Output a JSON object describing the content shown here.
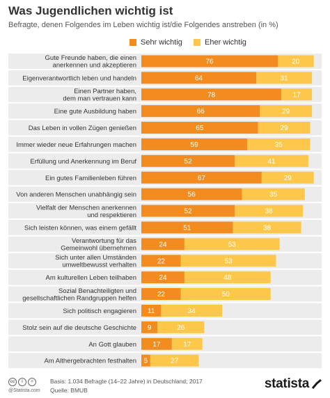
{
  "header": {
    "title": "Was Jugendlichen wichtig ist",
    "subtitle": "Befragte, denen Folgendes im Leben wichtig ist/die Folgendes anstreben (in %)"
  },
  "chart_data": {
    "type": "bar",
    "orientation": "horizontal",
    "stacked": true,
    "legend_position": "top",
    "categories": [
      "Gute Freunde haben, die einen\nanerkennen und akzeptieren",
      "Eigenverantwortlich leben und handeln",
      "Einen Partner haben,\ndem man vertrauen kann",
      "Eine gute Ausbildung haben",
      "Das Leben in vollen Zügen genießen",
      "Immer wieder neue Erfahrungen machen",
      "Erfüllung und Anerkennung im Beruf",
      "Ein gutes Familienleben führen",
      "Von anderen Menschen unabhängig sein",
      "Vielfalt der Menschen anerkennen\nund respektieren",
      "Sich leisten können, was einem gefällt",
      "Verantwortung für das\nGemeinwohl übernehmen",
      "Sich unter allen Umständen\numweltbewusst verhalten",
      "Am kulturellen Leben teilhaben",
      "Sozial Benachteiligten und\ngesellschaftlichen Randgruppen helfen",
      "Sich politisch engagieren",
      "Stolz sein auf die deutsche Geschichte",
      "An Gott glauben",
      "Am Althergebrachten festhalten"
    ],
    "series": [
      {
        "name": "Sehr wichtig",
        "color": "#f28c1f",
        "values": [
          76,
          64,
          78,
          66,
          65,
          59,
          52,
          67,
          56,
          52,
          51,
          24,
          22,
          24,
          22,
          11,
          9,
          17,
          5
        ]
      },
      {
        "name": "Eher wichtig",
        "color": "#fcc74a",
        "values": [
          20,
          31,
          17,
          29,
          29,
          35,
          41,
          29,
          35,
          38,
          38,
          53,
          53,
          48,
          50,
          34,
          26,
          17,
          27
        ]
      }
    ],
    "xlim": [
      0,
      100
    ],
    "grid": false,
    "row_band_color": "#ececec"
  },
  "footer": {
    "source_line_1": "Basis: 1.034 Befragte (14–22 Jahre) in Deutschland; 2017",
    "source_line_2": "Quelle: BMUB",
    "url": "@Statista.com",
    "brand": "statista",
    "cc_labels": [
      "cc",
      "i",
      "="
    ]
  }
}
